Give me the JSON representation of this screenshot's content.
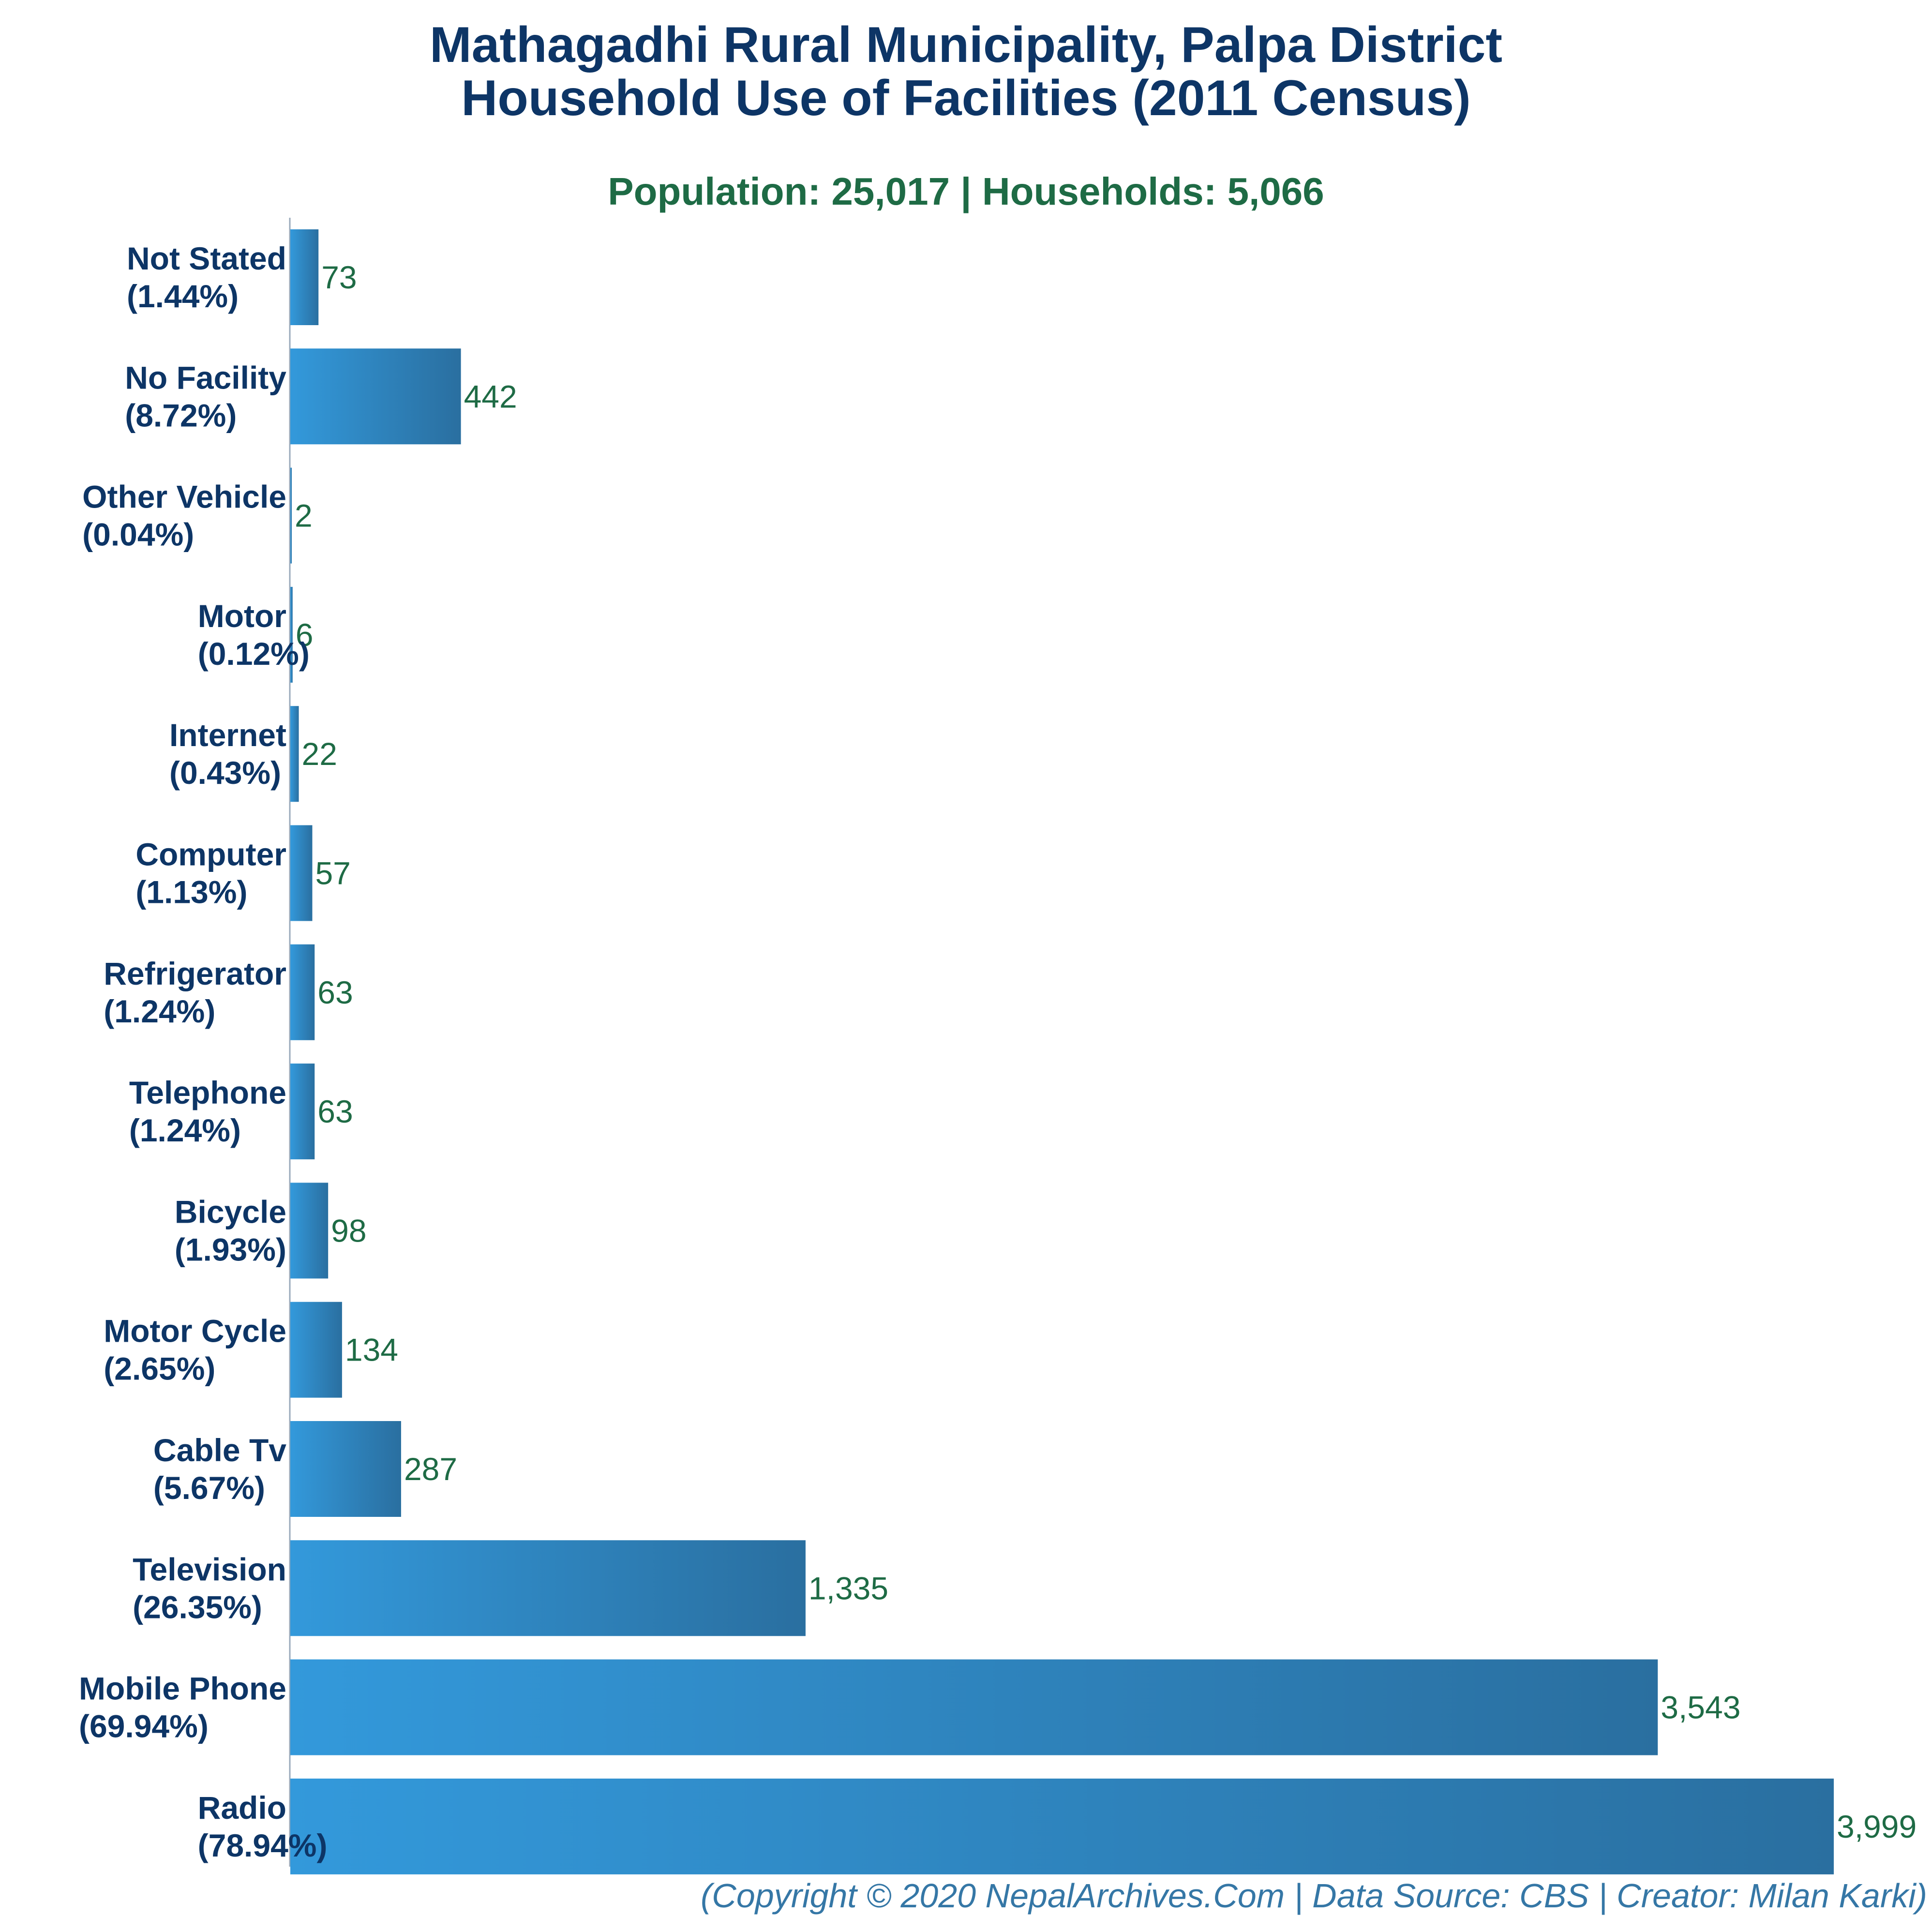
{
  "title_line1": "Mathagadhi Rural Municipality, Palpa District",
  "title_line2": "Household Use of Facilities (2011 Census)",
  "subtitle": "Population: 25,017 | Households: 5,066",
  "footer": "(Copyright © 2020 NepalArchives.Com | Data Source: CBS | Creator: Milan Karki)",
  "colors": {
    "bar_light": "#3399db",
    "bar_dark": "#2a6fa0",
    "label": "#0d3566",
    "value": "#1e6b45"
  },
  "chart_data": {
    "type": "bar",
    "orientation": "horizontal",
    "title": "Mathagadhi Rural Municipality, Palpa District Household Use of Facilities (2011 Census)",
    "subtitle": "Population: 25,017 | Households: 5,066",
    "categories": [
      "Not Stated",
      "No Facility",
      "Other Vehicle",
      "Motor",
      "Internet",
      "Computer",
      "Refrigerator",
      "Telephone",
      "Bicycle",
      "Motor Cycle",
      "Cable Tv",
      "Television",
      "Mobile Phone",
      "Radio"
    ],
    "percent_labels": [
      "(1.44%)",
      "(8.72%)",
      "(0.04%)",
      "(0.12%)",
      "(0.43%)",
      "(1.13%)",
      "(1.24%)",
      "(1.24%)",
      "(1.93%)",
      "(2.65%)",
      "(5.67%)",
      "(26.35%)",
      "(69.94%)",
      "(78.94%)"
    ],
    "values": [
      73,
      442,
      2,
      6,
      22,
      57,
      63,
      63,
      98,
      134,
      287,
      1335,
      3543,
      3999
    ],
    "value_labels": [
      "73",
      "442",
      "2",
      "6",
      "22",
      "57",
      "63",
      "63",
      "98",
      "134",
      "287",
      "1,335",
      "3,543",
      "3,999"
    ],
    "xlim": [
      0,
      3999
    ],
    "grid": false,
    "legend": "none"
  }
}
